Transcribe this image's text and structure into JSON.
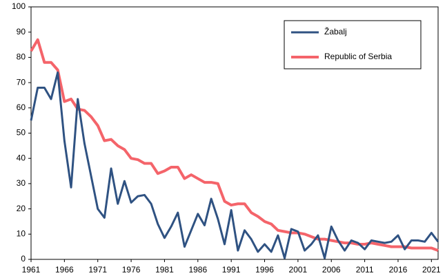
{
  "chart_data": {
    "type": "line",
    "x": [
      1961,
      1962,
      1963,
      1964,
      1965,
      1966,
      1967,
      1968,
      1969,
      1970,
      1971,
      1972,
      1973,
      1974,
      1975,
      1976,
      1977,
      1978,
      1979,
      1980,
      1981,
      1982,
      1983,
      1984,
      1985,
      1986,
      1987,
      1988,
      1989,
      1990,
      1991,
      1992,
      1993,
      1994,
      1995,
      1996,
      1997,
      1998,
      1999,
      2000,
      2001,
      2002,
      2003,
      2004,
      2005,
      2006,
      2007,
      2008,
      2009,
      2010,
      2011,
      2012,
      2013,
      2014,
      2015,
      2016,
      2017,
      2018,
      2019,
      2020,
      2021,
      2022
    ],
    "series": [
      {
        "name": "Žabalj",
        "color": "#2f5282",
        "values": [
          55,
          68,
          68,
          63.5,
          74,
          47,
          28.5,
          63.5,
          46,
          33,
          20,
          16.5,
          36,
          22,
          31,
          22.5,
          25,
          25.5,
          22,
          14,
          8.5,
          13,
          18.5,
          5,
          11.5,
          18,
          13.5,
          24,
          16,
          6,
          19.5,
          3.5,
          11.5,
          8,
          3,
          6,
          3,
          9.5,
          0.5,
          12,
          11,
          3.5,
          6,
          9.5,
          0.5,
          13,
          7.5,
          3.5,
          7.5,
          6.5,
          4,
          7.5,
          7,
          6.5,
          7,
          9.5,
          4,
          7.5,
          7.5,
          7,
          10.5,
          7
        ]
      },
      {
        "name": "Republic of Serbia",
        "color": "#f4646a",
        "values": [
          82.5,
          87,
          78,
          78,
          75,
          62.5,
          63.5,
          59.5,
          59,
          56.5,
          53,
          47,
          47.5,
          45,
          43.5,
          40,
          39.5,
          38,
          38,
          34,
          35,
          36.5,
          36.5,
          32,
          33.5,
          32,
          30.5,
          30.5,
          30,
          23,
          21.5,
          22,
          22,
          18.5,
          17,
          15,
          14,
          11.5,
          11,
          10.5,
          10.5,
          10,
          9,
          8,
          8,
          7.5,
          7,
          6.5,
          6.5,
          6,
          6,
          6.5,
          6,
          5.5,
          5,
          5,
          5,
          4.5,
          4.5,
          4.5,
          4.5,
          3.5
        ]
      }
    ],
    "xlim": [
      1961,
      2022
    ],
    "xticks": [
      1961,
      1966,
      1971,
      1976,
      1981,
      1986,
      1991,
      1996,
      2001,
      2006,
      2011,
      2016,
      2021
    ],
    "ylim": [
      0,
      100
    ],
    "yticks": [
      0,
      10,
      20,
      30,
      40,
      50,
      60,
      70,
      80,
      90,
      100
    ],
    "legend": "upper right"
  }
}
